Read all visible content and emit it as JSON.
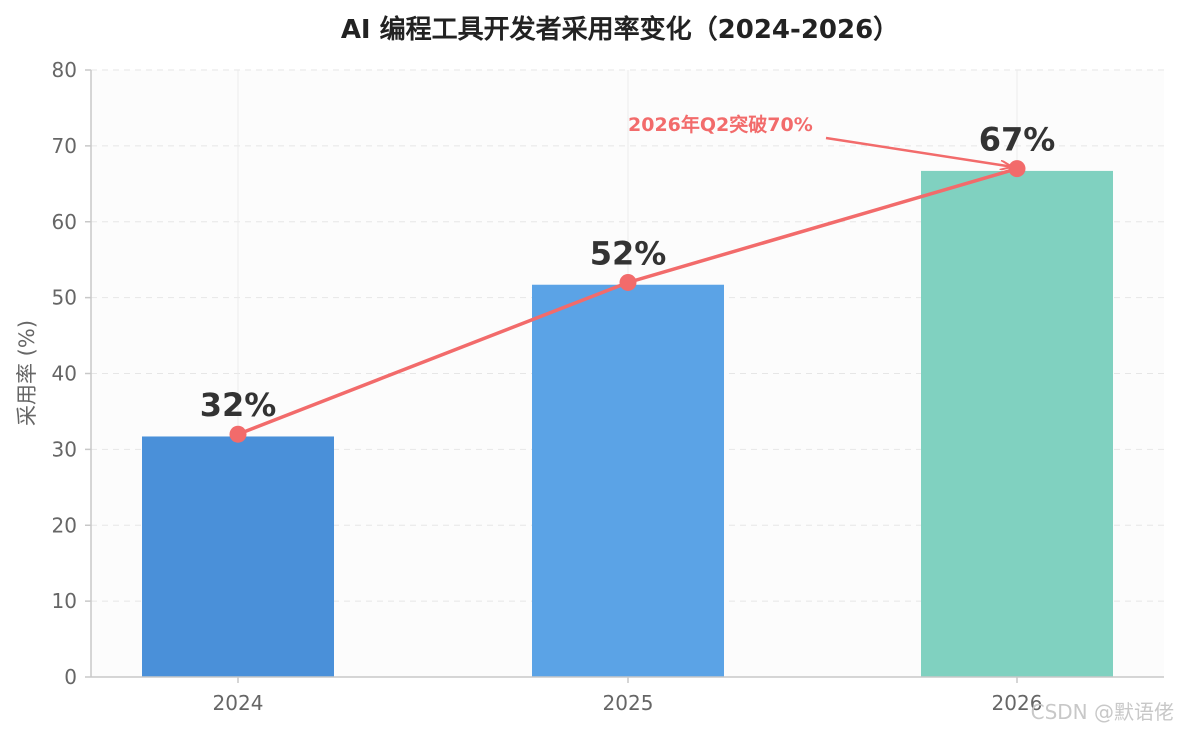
{
  "chart_data": {
    "type": "bar",
    "title": "AI 编程工具开发者采用率变化（2024-2026）",
    "xlabel": "",
    "ylabel": "采用率 (%)",
    "categories": [
      "2024",
      "2025",
      "2026"
    ],
    "values": [
      31.7,
      51.7,
      66.7
    ],
    "value_labels": [
      "32%",
      "52%",
      "67%"
    ],
    "bar_colors": [
      "#4a90d9",
      "#5ba3e6",
      "#80d1c0"
    ],
    "trend_line": {
      "values": [
        32,
        52,
        67
      ],
      "color": "#f26b6b"
    },
    "annotation": {
      "text": "2026年Q2突破70%",
      "target_category": "2026",
      "target_value": 67,
      "color": "#f26b6b"
    },
    "ylim": [
      0,
      80
    ],
    "yticks": [
      0,
      10,
      20,
      30,
      40,
      50,
      60,
      70,
      80
    ],
    "grid": true,
    "legend": "none"
  },
  "watermark": "CSDN @默语佬"
}
